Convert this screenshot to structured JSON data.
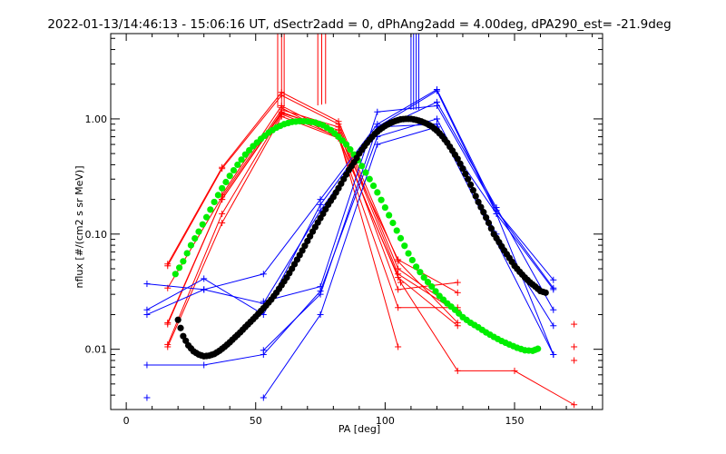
{
  "chart_data": {
    "type": "scatter",
    "title": "2022-01-13/14:46:13 - 15:06:16 UT, dSectr2add = 0, dPhAng2add = 4.00deg, dPA290_est= -21.9deg",
    "xlabel": "PA [deg]",
    "ylabel": "nflux [#/(cm2 s sr MeV)]",
    "xlim": [
      -6,
      184
    ],
    "ylim": [
      0.003,
      5.5
    ],
    "yscale": "log",
    "grid": false,
    "x_ticks": [
      0,
      50,
      100,
      150
    ],
    "x_tick_labels": [
      "0",
      "50",
      "100",
      "150"
    ],
    "y_ticks": [
      0.01,
      0.1,
      1.0
    ],
    "y_tick_labels": [
      "0.01",
      "0.10",
      "1.00"
    ],
    "colors": {
      "red": "#ff0000",
      "blue": "#0000ff",
      "green": "#00ee00",
      "black": "#000000"
    },
    "red_series": [
      {
        "x": [
          16,
          37,
          60,
          82,
          105,
          128
        ],
        "y": [
          0.055,
          0.38,
          1.7,
          0.95,
          0.058,
          0.017
        ]
      },
      {
        "x": [
          16,
          37,
          60,
          82,
          105,
          128
        ],
        "y": [
          0.053,
          0.37,
          1.6,
          0.9,
          0.05,
          0.022
        ]
      },
      {
        "x": [
          16,
          37,
          60,
          82,
          105,
          128
        ],
        "y": [
          0.034,
          0.21,
          1.2,
          0.85,
          0.045,
          0.021
        ]
      },
      {
        "x": [
          16,
          37,
          60,
          82,
          105,
          128
        ],
        "y": [
          0.017,
          0.2,
          1.15,
          0.75,
          0.06,
          0.031
        ]
      },
      {
        "x": [
          16,
          37,
          60,
          82,
          105,
          128
        ],
        "y": [
          0.011,
          0.15,
          1.1,
          0.7,
          0.042,
          0.016
        ]
      },
      {
        "x": [
          16,
          37,
          60,
          82,
          105,
          128
        ],
        "y": [
          0.0105,
          0.125,
          1.05,
          0.68,
          0.023,
          0.023
        ]
      },
      {
        "x": [
          16,
          37,
          60,
          82,
          105,
          128
        ],
        "y": [
          0.0165,
          0.2,
          1.12,
          0.8,
          0.033,
          0.038
        ]
      },
      {
        "x": [
          37,
          60,
          82,
          105
        ],
        "y": [
          0.22,
          1.3,
          0.72,
          0.0105
        ]
      },
      {
        "x": [
          60,
          82,
          106,
          128,
          150,
          173
        ],
        "y": [
          1.25,
          0.68,
          0.038,
          0.0065,
          0.0065,
          0.0033
        ]
      }
    ],
    "red_points": [
      {
        "x": 173,
        "y": 0.0165
      },
      {
        "x": 173,
        "y": 0.0105
      },
      {
        "x": 173,
        "y": 0.008
      }
    ],
    "red_spikes_x": [
      58.5,
      60,
      61,
      74,
      75.5,
      77
    ],
    "blue_series": [
      {
        "x": 8,
        "y": [
          0.037,
          0.036,
          0.022,
          0.02,
          0.0073
        ]
      },
      {
        "x": 31
      },
      {
        "x": 53
      }
    ],
    "blue_lines": [
      {
        "x": [
          8,
          30,
          53,
          75,
          97,
          120,
          143,
          165
        ],
        "y": [
          0.037,
          0.033,
          0.045,
          0.2,
          0.9,
          1.8,
          0.16,
          0.04
        ]
      },
      {
        "x": [
          8,
          30,
          53,
          75,
          97,
          120,
          143,
          165
        ],
        "y": [
          0.022,
          0.041,
          0.02,
          0.18,
          0.85,
          1.75,
          0.15,
          0.033
        ]
      },
      {
        "x": [
          8,
          30,
          53,
          75,
          97,
          120,
          143,
          165
        ],
        "y": [
          0.02,
          0.033,
          0.025,
          0.16,
          0.8,
          1.4,
          0.17,
          0.022
        ]
      },
      {
        "x": [
          8,
          30,
          53,
          75,
          97,
          120,
          143,
          165
        ],
        "y": [
          0.0073,
          0.0073,
          0.009,
          0.032,
          0.7,
          1.0,
          0.1,
          0.016
        ]
      },
      {
        "x": [
          53,
          75,
          97,
          120,
          143,
          165
        ],
        "y": [
          0.026,
          0.035,
          1.15,
          1.3,
          0.16,
          0.034
        ]
      },
      {
        "x": [
          53,
          75,
          97,
          120,
          143,
          165
        ],
        "y": [
          0.0038,
          0.02,
          0.6,
          0.85,
          0.15,
          0.009
        ]
      },
      {
        "x": [
          53,
          75,
          97,
          120,
          165
        ],
        "y": [
          0.0098,
          0.03,
          0.85,
          0.9,
          0.009
        ]
      }
    ],
    "blue_points": [
      {
        "x": 8,
        "y": 0.0038
      }
    ],
    "blue_spikes_x": [
      110,
      111,
      112,
      113
    ],
    "green_curve": {
      "x": [
        19,
        22,
        25,
        28,
        31,
        34,
        37,
        40,
        43,
        46,
        49,
        52,
        55,
        58,
        61,
        64,
        67,
        70,
        73,
        76,
        79,
        82,
        85,
        88,
        91,
        94,
        97,
        100,
        103,
        106,
        109,
        112,
        115,
        118,
        121,
        124,
        127,
        130,
        133,
        136,
        139,
        142,
        145,
        148,
        151,
        154,
        157,
        159
      ],
      "y": [
        0.045,
        0.058,
        0.08,
        0.105,
        0.14,
        0.19,
        0.25,
        0.32,
        0.4,
        0.49,
        0.58,
        0.67,
        0.76,
        0.84,
        0.9,
        0.94,
        0.955,
        0.95,
        0.93,
        0.88,
        0.8,
        0.7,
        0.6,
        0.49,
        0.39,
        0.3,
        0.23,
        0.17,
        0.125,
        0.092,
        0.068,
        0.052,
        0.042,
        0.035,
        0.029,
        0.025,
        0.022,
        0.019,
        0.017,
        0.0155,
        0.014,
        0.0128,
        0.0118,
        0.011,
        0.0103,
        0.0098,
        0.0097,
        0.0101
      ]
    },
    "black_curve": {
      "x": [
        20,
        22,
        24,
        26,
        28,
        30,
        32,
        34,
        36,
        38,
        40,
        42,
        44,
        46,
        48,
        50,
        52,
        54,
        56,
        58,
        60,
        62,
        64,
        66,
        68,
        70,
        72,
        74,
        76,
        78,
        80,
        82,
        84,
        86,
        88,
        90,
        92,
        94,
        96,
        98,
        100,
        102,
        104,
        106,
        108,
        110,
        112,
        114,
        116,
        118,
        120,
        122,
        124,
        126,
        128,
        130,
        132,
        134,
        136,
        138,
        140,
        142,
        144,
        146,
        148,
        150,
        152,
        154,
        156,
        158,
        160,
        162
      ],
      "y": [
        0.018,
        0.013,
        0.0108,
        0.0096,
        0.009,
        0.0087,
        0.0088,
        0.0091,
        0.0097,
        0.0105,
        0.0115,
        0.0127,
        0.014,
        0.0156,
        0.0173,
        0.0192,
        0.0215,
        0.024,
        0.027,
        0.031,
        0.036,
        0.042,
        0.05,
        0.06,
        0.072,
        0.087,
        0.105,
        0.126,
        0.15,
        0.18,
        0.21,
        0.25,
        0.3,
        0.36,
        0.42,
        0.5,
        0.58,
        0.66,
        0.74,
        0.81,
        0.87,
        0.92,
        0.96,
        0.99,
        1.0,
        1.0,
        0.98,
        0.95,
        0.91,
        0.86,
        0.79,
        0.71,
        0.62,
        0.53,
        0.45,
        0.37,
        0.3,
        0.24,
        0.19,
        0.155,
        0.125,
        0.1,
        0.085,
        0.072,
        0.062,
        0.053,
        0.047,
        0.042,
        0.038,
        0.035,
        0.032,
        0.031
      ]
    }
  }
}
